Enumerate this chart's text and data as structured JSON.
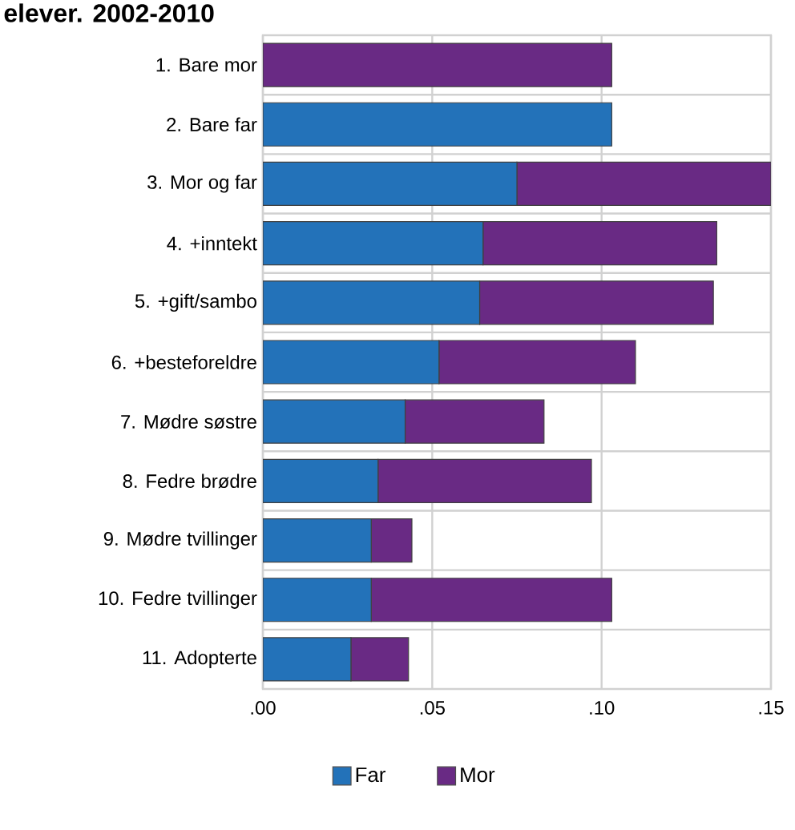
{
  "chart_data": {
    "type": "bar",
    "orientation": "horizontal",
    "stacked": true,
    "title": "elever. 2002-2010",
    "categories": [
      "1. Bare mor",
      "2. Bare far",
      "3. Mor og far",
      "4. +inntekt",
      "5. +gift/sambo",
      "6. +besteforeldre",
      "7. Mødre søstre",
      "8. Fedre brødre",
      "9. Mødre tvillinger",
      "10. Fedre tvillinger",
      "11. Adopterte"
    ],
    "series": [
      {
        "name": "Far",
        "color": "#2372b9",
        "values": [
          0,
          0.103,
          0.075,
          0.065,
          0.064,
          0.052,
          0.042,
          0.034,
          0.032,
          0.032,
          0.026
        ]
      },
      {
        "name": "Mor",
        "color": "#692a84",
        "values": [
          0.103,
          0,
          0.075,
          0.069,
          0.069,
          0.058,
          0.041,
          0.063,
          0.012,
          0.071,
          0.017
        ]
      }
    ],
    "xlim": [
      0,
      0.15
    ],
    "xticks": [
      {
        "value": 0,
        "label": ".00"
      },
      {
        "value": 0.05,
        "label": ".05"
      },
      {
        "value": 0.1,
        "label": ".10"
      },
      {
        "value": 0.15,
        "label": ".15"
      }
    ],
    "grid": true,
    "legend": "bottom"
  }
}
